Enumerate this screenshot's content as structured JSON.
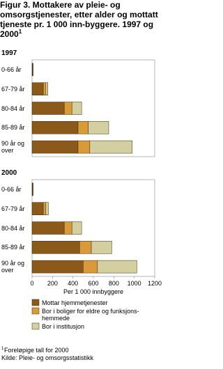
{
  "title": "Figur 3.  Mottakere av pleie- og omsorgstjenester, etter alder og mottatt tjeneste pr. 1 000 inn-byggere. 1997 og 2000",
  "title_note": "1",
  "chart_data": [
    {
      "type": "bar",
      "title": "1997",
      "categories": [
        "0-66 år",
        "67-79 år",
        "80-84 år",
        "85-89 år",
        "90 år og over"
      ],
      "series": [
        {
          "color": "#8b5a1b",
          "values": [
            5,
            110,
            315,
            450,
            450
          ]
        },
        {
          "color": "#d99a3a",
          "values": [
            2,
            25,
            75,
            100,
            115
          ]
        },
        {
          "color": "#d4cfa0",
          "values": [
            1,
            20,
            95,
            200,
            415
          ]
        }
      ],
      "xlim": [
        0,
        1200
      ]
    },
    {
      "type": "bar",
      "title": "2000",
      "categories": [
        "0-66 år",
        "67-79 år",
        "80-84 år",
        "85-89 år",
        "90 år og over"
      ],
      "series": [
        {
          "name": "Mottar hjemmetjenester",
          "color": "#8b5a1b",
          "values": [
            5,
            110,
            315,
            465,
            500
          ]
        },
        {
          "name": "Bor i boliger for eldre og funksjons- hemmede",
          "color": "#d99a3a",
          "values": [
            2,
            25,
            75,
            115,
            140
          ]
        },
        {
          "name": "Bor i institusjon",
          "color": "#d4cfa0",
          "values": [
            1,
            25,
            95,
            200,
            385
          ]
        }
      ],
      "xlim": [
        0,
        1200
      ],
      "xticks": [
        0,
        200,
        400,
        600,
        800,
        1000,
        1200
      ],
      "xlabel": "Per 1 000 innbyggere"
    }
  ],
  "footnote": {
    "marker": "1",
    "text": "Foreløpige tall for 2000"
  },
  "source": "Kilde: Pleie- og omsorgsstatistikk"
}
